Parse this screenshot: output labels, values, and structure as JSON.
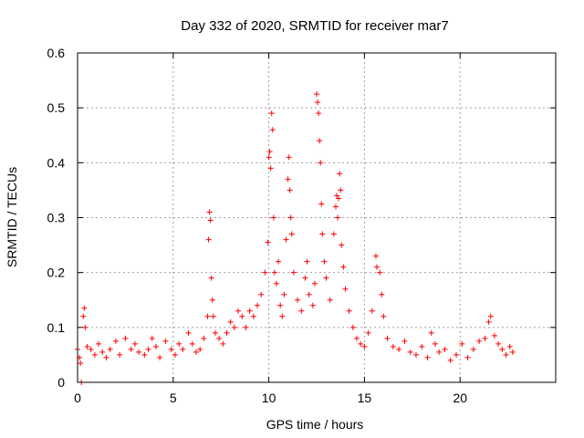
{
  "chart_data": {
    "type": "scatter",
    "title": "Day 332 of 2020, SRMTID for receiver mar7",
    "xlabel": "GPS time / hours",
    "ylabel": "SRMTID / TECUs",
    "xlim": [
      0,
      25
    ],
    "ylim": [
      0,
      0.6
    ],
    "xticks": [
      0,
      5,
      10,
      15,
      20
    ],
    "yticks": [
      0,
      0.1,
      0.2,
      0.3,
      0.4,
      0.5,
      0.6
    ],
    "ytick_labels": [
      "0",
      "0.1",
      "0.2",
      "0.3",
      "0.4",
      "0.5",
      "0.6"
    ],
    "grid": true,
    "marker": "+",
    "color": "#ff0000",
    "x_data_range": [
      0,
      22.75
    ],
    "series": [
      {
        "name": "SRMTID",
        "points": [
          [
            0.0,
            0.06
          ],
          [
            0.1,
            0.045
          ],
          [
            0.15,
            0.035
          ],
          [
            0.2,
            0.0
          ],
          [
            0.3,
            0.12
          ],
          [
            0.35,
            0.135
          ],
          [
            0.4,
            0.1
          ],
          [
            0.5,
            0.065
          ],
          [
            0.7,
            0.06
          ],
          [
            0.9,
            0.05
          ],
          [
            1.1,
            0.07
          ],
          [
            1.3,
            0.055
          ],
          [
            1.5,
            0.045
          ],
          [
            1.7,
            0.06
          ],
          [
            2.0,
            0.075
          ],
          [
            2.2,
            0.05
          ],
          [
            2.5,
            0.08
          ],
          [
            2.8,
            0.06
          ],
          [
            3.0,
            0.07
          ],
          [
            3.2,
            0.055
          ],
          [
            3.5,
            0.05
          ],
          [
            3.7,
            0.06
          ],
          [
            3.9,
            0.08
          ],
          [
            4.1,
            0.065
          ],
          [
            4.3,
            0.045
          ],
          [
            4.6,
            0.075
          ],
          [
            4.9,
            0.06
          ],
          [
            5.1,
            0.05
          ],
          [
            5.3,
            0.07
          ],
          [
            5.5,
            0.06
          ],
          [
            5.8,
            0.09
          ],
          [
            6.0,
            0.07
          ],
          [
            6.2,
            0.055
          ],
          [
            6.4,
            0.06
          ],
          [
            6.6,
            0.08
          ],
          [
            6.8,
            0.12
          ],
          [
            6.85,
            0.26
          ],
          [
            6.9,
            0.31
          ],
          [
            6.95,
            0.295
          ],
          [
            7.0,
            0.19
          ],
          [
            7.05,
            0.15
          ],
          [
            7.1,
            0.12
          ],
          [
            7.2,
            0.09
          ],
          [
            7.4,
            0.08
          ],
          [
            7.6,
            0.07
          ],
          [
            7.8,
            0.09
          ],
          [
            8.0,
            0.11
          ],
          [
            8.2,
            0.1
          ],
          [
            8.4,
            0.13
          ],
          [
            8.6,
            0.12
          ],
          [
            8.8,
            0.1
          ],
          [
            9.0,
            0.13
          ],
          [
            9.2,
            0.12
          ],
          [
            9.4,
            0.14
          ],
          [
            9.6,
            0.16
          ],
          [
            9.8,
            0.2
          ],
          [
            9.95,
            0.255
          ],
          [
            10.0,
            0.41
          ],
          [
            10.05,
            0.42
          ],
          [
            10.1,
            0.39
          ],
          [
            10.15,
            0.49
          ],
          [
            10.2,
            0.46
          ],
          [
            10.25,
            0.3
          ],
          [
            10.3,
            0.2
          ],
          [
            10.4,
            0.18
          ],
          [
            10.5,
            0.22
          ],
          [
            10.6,
            0.14
          ],
          [
            10.7,
            0.12
          ],
          [
            10.8,
            0.16
          ],
          [
            10.9,
            0.26
          ],
          [
            11.0,
            0.37
          ],
          [
            11.05,
            0.41
          ],
          [
            11.1,
            0.35
          ],
          [
            11.15,
            0.3
          ],
          [
            11.2,
            0.27
          ],
          [
            11.3,
            0.2
          ],
          [
            11.5,
            0.15
          ],
          [
            11.7,
            0.13
          ],
          [
            11.9,
            0.19
          ],
          [
            12.0,
            0.22
          ],
          [
            12.1,
            0.16
          ],
          [
            12.3,
            0.14
          ],
          [
            12.4,
            0.18
          ],
          [
            12.5,
            0.525
          ],
          [
            12.55,
            0.51
          ],
          [
            12.6,
            0.49
          ],
          [
            12.65,
            0.44
          ],
          [
            12.7,
            0.4
          ],
          [
            12.75,
            0.325
          ],
          [
            12.8,
            0.27
          ],
          [
            12.9,
            0.22
          ],
          [
            13.0,
            0.19
          ],
          [
            13.2,
            0.15
          ],
          [
            13.4,
            0.27
          ],
          [
            13.5,
            0.32
          ],
          [
            13.55,
            0.34
          ],
          [
            13.6,
            0.3
          ],
          [
            13.65,
            0.335
          ],
          [
            13.7,
            0.38
          ],
          [
            13.75,
            0.35
          ],
          [
            13.8,
            0.25
          ],
          [
            13.9,
            0.21
          ],
          [
            14.0,
            0.17
          ],
          [
            14.2,
            0.13
          ],
          [
            14.4,
            0.1
          ],
          [
            14.6,
            0.08
          ],
          [
            14.8,
            0.07
          ],
          [
            15.0,
            0.065
          ],
          [
            15.2,
            0.09
          ],
          [
            15.4,
            0.13
          ],
          [
            15.6,
            0.23
          ],
          [
            15.65,
            0.21
          ],
          [
            15.8,
            0.2
          ],
          [
            15.9,
            0.16
          ],
          [
            16.0,
            0.12
          ],
          [
            16.2,
            0.08
          ],
          [
            16.5,
            0.065
          ],
          [
            16.8,
            0.06
          ],
          [
            17.1,
            0.075
          ],
          [
            17.4,
            0.055
          ],
          [
            17.7,
            0.05
          ],
          [
            18.0,
            0.065
          ],
          [
            18.3,
            0.045
          ],
          [
            18.5,
            0.09
          ],
          [
            18.7,
            0.07
          ],
          [
            18.9,
            0.055
          ],
          [
            19.2,
            0.06
          ],
          [
            19.5,
            0.04
          ],
          [
            19.8,
            0.05
          ],
          [
            20.1,
            0.07
          ],
          [
            20.4,
            0.045
          ],
          [
            20.7,
            0.06
          ],
          [
            21.0,
            0.075
          ],
          [
            21.3,
            0.08
          ],
          [
            21.5,
            0.11
          ],
          [
            21.6,
            0.12
          ],
          [
            21.8,
            0.085
          ],
          [
            22.0,
            0.07
          ],
          [
            22.2,
            0.06
          ],
          [
            22.4,
            0.05
          ],
          [
            22.6,
            0.065
          ],
          [
            22.75,
            0.055
          ]
        ]
      }
    ]
  }
}
